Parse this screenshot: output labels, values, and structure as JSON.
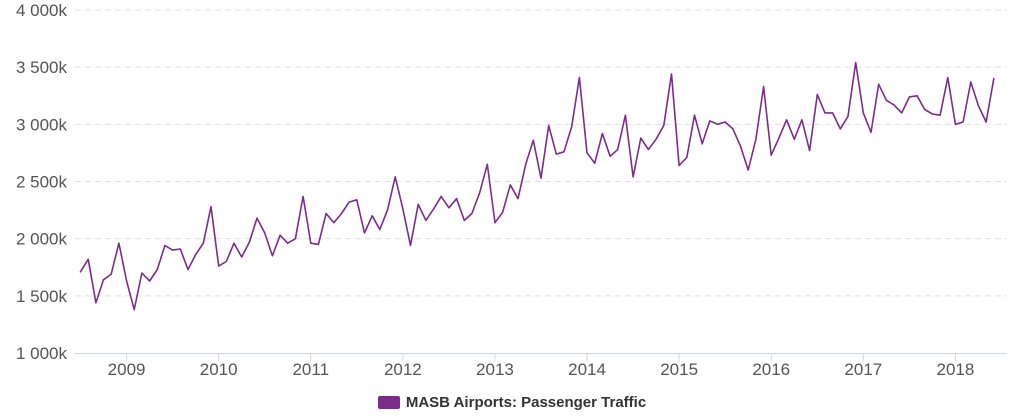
{
  "chart_data": {
    "type": "line",
    "title": "",
    "xlabel": "",
    "ylabel": "",
    "ylim": [
      1000000,
      4000000
    ],
    "xlim": [
      2008.44,
      2018.56
    ],
    "y_ticks": [
      {
        "value": 1000000,
        "label": "1 000k"
      },
      {
        "value": 1500000,
        "label": "1 500k"
      },
      {
        "value": 2000000,
        "label": "2 000k"
      },
      {
        "value": 2500000,
        "label": "2 500k"
      },
      {
        "value": 3000000,
        "label": "3 000k"
      },
      {
        "value": 3500000,
        "label": "3 500k"
      },
      {
        "value": 4000000,
        "label": "4 000k"
      }
    ],
    "x_ticks": [
      {
        "value": 2009,
        "label": "2009"
      },
      {
        "value": 2010,
        "label": "2010"
      },
      {
        "value": 2011,
        "label": "2011"
      },
      {
        "value": 2012,
        "label": "2012"
      },
      {
        "value": 2013,
        "label": "2013"
      },
      {
        "value": 2014,
        "label": "2014"
      },
      {
        "value": 2015,
        "label": "2015"
      },
      {
        "value": 2016,
        "label": "2016"
      },
      {
        "value": 2017,
        "label": "2017"
      },
      {
        "value": 2018,
        "label": "2018"
      }
    ],
    "grid": true,
    "legend_position": "bottom-center",
    "series": [
      {
        "name": "MASB Airports: Passenger Traffic",
        "color": "#7b2c8c",
        "start": "2008-07",
        "frequency": "monthly",
        "values": [
          1710000,
          1820000,
          1440000,
          1640000,
          1690000,
          1960000,
          1630000,
          1380000,
          1700000,
          1630000,
          1730000,
          1940000,
          1900000,
          1910000,
          1730000,
          1860000,
          1960000,
          2280000,
          1760000,
          1800000,
          1960000,
          1840000,
          1970000,
          2180000,
          2050000,
          1850000,
          2030000,
          1960000,
          2000000,
          2370000,
          1960000,
          1950000,
          2220000,
          2140000,
          2220000,
          2320000,
          2340000,
          2050000,
          2200000,
          2080000,
          2250000,
          2540000,
          2260000,
          1940000,
          2300000,
          2160000,
          2260000,
          2370000,
          2270000,
          2350000,
          2160000,
          2220000,
          2400000,
          2650000,
          2140000,
          2230000,
          2470000,
          2350000,
          2650000,
          2860000,
          2530000,
          2990000,
          2740000,
          2760000,
          2980000,
          3410000,
          2750000,
          2660000,
          2920000,
          2720000,
          2780000,
          3080000,
          2540000,
          2880000,
          2780000,
          2870000,
          2990000,
          3440000,
          2640000,
          2710000,
          3080000,
          2830000,
          3030000,
          3000000,
          3020000,
          2960000,
          2810000,
          2600000,
          2870000,
          3330000,
          2730000,
          2880000,
          3040000,
          2870000,
          3040000,
          2770000,
          3260000,
          3100000,
          3100000,
          2960000,
          3070000,
          3540000,
          3100000,
          2930000,
          3350000,
          3210000,
          3170000,
          3100000,
          3240000,
          3250000,
          3130000,
          3090000,
          3080000,
          3410000,
          3000000,
          3020000,
          3370000,
          3160000,
          3020000,
          3400000
        ]
      }
    ]
  }
}
